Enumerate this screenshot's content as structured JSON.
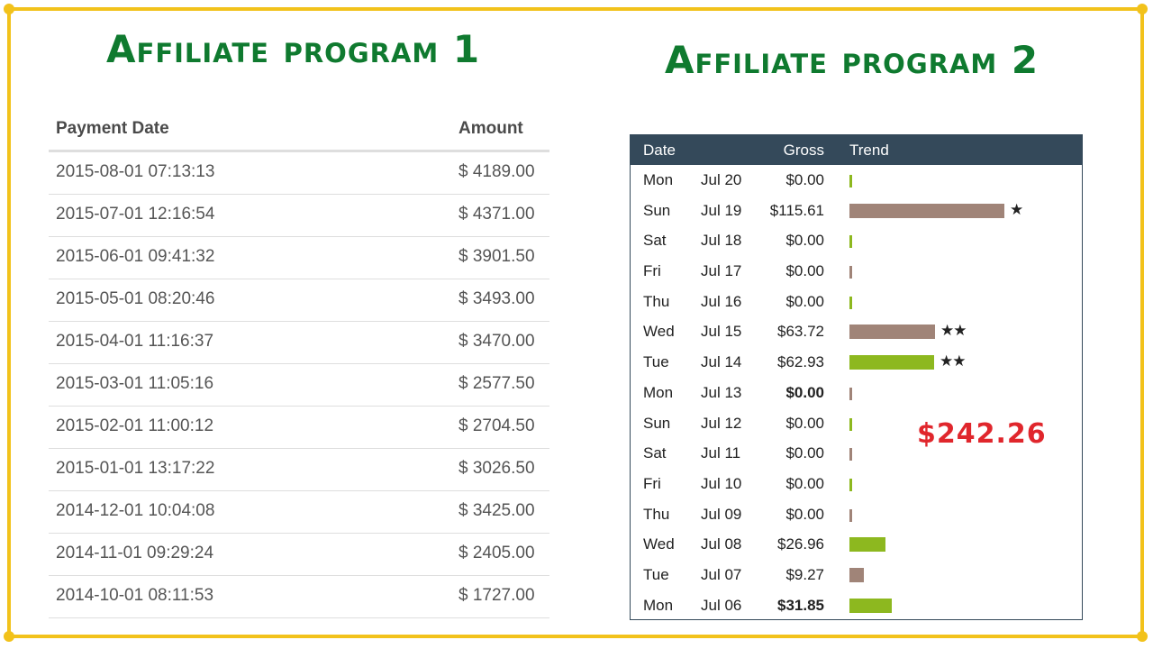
{
  "colors": {
    "frame": "#f2c21b",
    "title": "#0f7a2f",
    "header_bg": "#34495a",
    "bar_green": "#8db81f",
    "bar_brown": "#a08478",
    "star": "#f5c518",
    "total": "#e0262c"
  },
  "program1": {
    "title": "Affiliate program 1",
    "headers": {
      "date": "Payment Date",
      "amount": "Amount"
    },
    "rows": [
      {
        "date": "2015-08-01 07:13:13",
        "amount": "$ 4189.00"
      },
      {
        "date": "2015-07-01 12:16:54",
        "amount": "$ 4371.00"
      },
      {
        "date": "2015-06-01 09:41:32",
        "amount": "$ 3901.50"
      },
      {
        "date": "2015-05-01 08:20:46",
        "amount": "$ 3493.00"
      },
      {
        "date": "2015-04-01 11:16:37",
        "amount": "$ 3470.00"
      },
      {
        "date": "2015-03-01 11:05:16",
        "amount": "$ 2577.50"
      },
      {
        "date": "2015-02-01 11:00:12",
        "amount": "$ 2704.50"
      },
      {
        "date": "2015-01-01 13:17:22",
        "amount": "$ 3026.50"
      },
      {
        "date": "2014-12-01 10:04:08",
        "amount": "$ 3425.00"
      },
      {
        "date": "2014-11-01 09:29:24",
        "amount": "$ 2405.00"
      },
      {
        "date": "2014-10-01 08:11:53",
        "amount": "$ 1727.00"
      }
    ]
  },
  "program2": {
    "title": "Affiliate program 2",
    "headers": {
      "date": "Date",
      "gross": "Gross",
      "trend": "Trend"
    },
    "total": "$242.26",
    "trend_max": 115.61,
    "rows": [
      {
        "day": "Mon",
        "date": "Jul 20",
        "gross": "$0.00",
        "value": 0,
        "color": "green",
        "stars": 0,
        "bold": false
      },
      {
        "day": "Sun",
        "date": "Jul 19",
        "gross": "$115.61",
        "value": 115.61,
        "color": "brown",
        "stars": 1,
        "bold": false
      },
      {
        "day": "Sat",
        "date": "Jul 18",
        "gross": "$0.00",
        "value": 0,
        "color": "green",
        "stars": 0,
        "bold": false
      },
      {
        "day": "Fri",
        "date": "Jul 17",
        "gross": "$0.00",
        "value": 0,
        "color": "brown",
        "stars": 0,
        "bold": false
      },
      {
        "day": "Thu",
        "date": "Jul 16",
        "gross": "$0.00",
        "value": 0,
        "color": "green",
        "stars": 0,
        "bold": false
      },
      {
        "day": "Wed",
        "date": "Jul 15",
        "gross": "$63.72",
        "value": 63.72,
        "color": "brown",
        "stars": 2,
        "bold": false
      },
      {
        "day": "Tue",
        "date": "Jul 14",
        "gross": "$62.93",
        "value": 62.93,
        "color": "green",
        "stars": 2,
        "bold": false
      },
      {
        "day": "Mon",
        "date": "Jul 13",
        "gross": "$0.00",
        "value": 0,
        "color": "brown",
        "stars": 0,
        "bold": true
      },
      {
        "day": "Sun",
        "date": "Jul 12",
        "gross": "$0.00",
        "value": 0,
        "color": "green",
        "stars": 0,
        "bold": false
      },
      {
        "day": "Sat",
        "date": "Jul 11",
        "gross": "$0.00",
        "value": 0,
        "color": "brown",
        "stars": 0,
        "bold": false
      },
      {
        "day": "Fri",
        "date": "Jul 10",
        "gross": "$0.00",
        "value": 0,
        "color": "green",
        "stars": 0,
        "bold": false
      },
      {
        "day": "Thu",
        "date": "Jul 09",
        "gross": "$0.00",
        "value": 0,
        "color": "brown",
        "stars": 0,
        "bold": false
      },
      {
        "day": "Wed",
        "date": "Jul 08",
        "gross": "$26.96",
        "value": 26.96,
        "color": "green",
        "stars": 0,
        "bold": false
      },
      {
        "day": "Tue",
        "date": "Jul 07",
        "gross": "$9.27",
        "value": 9.27,
        "color": "brown",
        "stars": 0,
        "bold": false
      },
      {
        "day": "Mon",
        "date": "Jul 06",
        "gross": "$31.85",
        "value": 31.85,
        "color": "green",
        "stars": 0,
        "bold": true
      }
    ]
  }
}
